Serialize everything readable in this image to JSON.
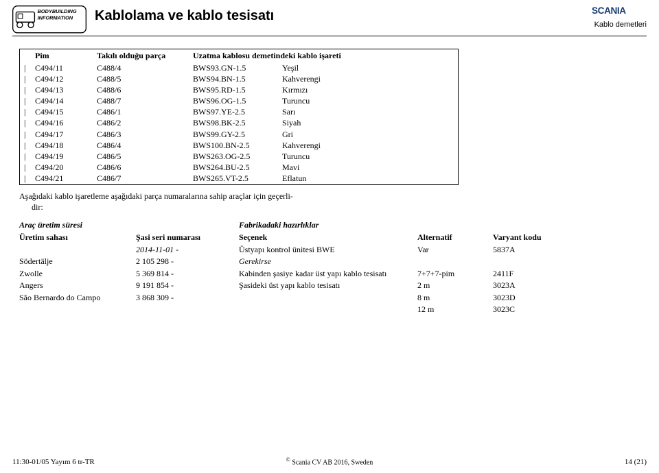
{
  "header": {
    "title": "Kablolama ve kablo tesisatı",
    "subtitle": "Kablo demetleri"
  },
  "pin_table": {
    "headers": {
      "pim": "Pim",
      "parca": "Takılı olduğu parça",
      "isaret": "Uzatma kablosu demetindeki kablo işareti"
    },
    "rows": [
      {
        "b": "|",
        "pim": "C494/11",
        "parca": "C488/4",
        "kod": "BWS93.GN-1.5",
        "renk": "Yeşil"
      },
      {
        "b": "|",
        "pim": "C494/12",
        "parca": "C488/5",
        "kod": "BWS94.BN-1.5",
        "renk": "Kahverengi"
      },
      {
        "b": "|",
        "pim": "C494/13",
        "parca": "C488/6",
        "kod": "BWS95.RD-1.5",
        "renk": "Kırmızı"
      },
      {
        "b": "|",
        "pim": "C494/14",
        "parca": "C488/7",
        "kod": "BWS96.OG-1.5",
        "renk": "Turuncu"
      },
      {
        "b": "|",
        "pim": "C494/15",
        "parca": "C486/1",
        "kod": "BWS97.YE-2.5",
        "renk": "Sarı"
      },
      {
        "b": "|",
        "pim": "C494/16",
        "parca": "C486/2",
        "kod": "BWS98.BK-2.5",
        "renk": "Siyah"
      },
      {
        "b": "|",
        "pim": "C494/17",
        "parca": "C486/3",
        "kod": "BWS99.GY-2.5",
        "renk": "Gri"
      },
      {
        "b": "|",
        "pim": "C494/18",
        "parca": "C486/4",
        "kod": "BWS100.BN-2.5",
        "renk": "Kahverengi"
      },
      {
        "b": "|",
        "pim": "C494/19",
        "parca": "C486/5",
        "kod": "BWS263.OG-2.5",
        "renk": "Turuncu"
      },
      {
        "b": "|",
        "pim": "C494/20",
        "parca": "C486/6",
        "kod": "BWS264.BU-2.5",
        "renk": "Mavi"
      },
      {
        "b": "|",
        "pim": "C494/21",
        "parca": "C486/7",
        "kod": "BWS265.VT-2.5",
        "renk": "Eflatun"
      }
    ]
  },
  "note": {
    "line1": "Aşağıdaki kablo işaretleme aşağıdaki parça numaralarına sahip araçlar için geçerli-",
    "line2": "dir:"
  },
  "left_table": {
    "group_header": "Araç üretim süresi",
    "h1": "Üretim sahası",
    "h2": "Şasi seri numarası",
    "rows": [
      {
        "c1": "",
        "c2": "2014-11-01  -"
      },
      {
        "c1": "Södertälje",
        "c2": "2 105 298  -"
      },
      {
        "c1": "Zwolle",
        "c2": "5 369 814  -"
      },
      {
        "c1": "Angers",
        "c2": "9 191 854  -"
      },
      {
        "c1": "São Bernardo do Campo",
        "c2": "3 868 309  -"
      }
    ]
  },
  "right_table": {
    "group_header": "Fabrikadaki hazırlıklar",
    "h1": "Seçenek",
    "h2": "Alternatif",
    "h3": "Varyant kodu",
    "rows": [
      {
        "c1": "Üstyapı kontrol ünitesi BWE",
        "c2": "Var",
        "c3": "5837A"
      },
      {
        "c1": "",
        "c2": "",
        "c3": ""
      },
      {
        "c1": "Gerekirse",
        "c2": "",
        "c3": "",
        "italic": true
      },
      {
        "c1": "Kabinden şasiye kadar üst yapı kablo tesisatı",
        "c2": "7+7+7-pim",
        "c3": "2411F"
      },
      {
        "c1": "Şasideki üst yapı kablo tesisatı",
        "c2": "2 m",
        "c3": "3023A"
      },
      {
        "c1": "",
        "c2": "8 m",
        "c3": "3023D"
      },
      {
        "c1": "",
        "c2": "12 m",
        "c3": "3023C"
      }
    ]
  },
  "footer": {
    "left": "11:30-01/05 Yayım 6  tr-TR",
    "center": "Scania CV AB 2016, Sweden",
    "right": "14 (21)"
  }
}
